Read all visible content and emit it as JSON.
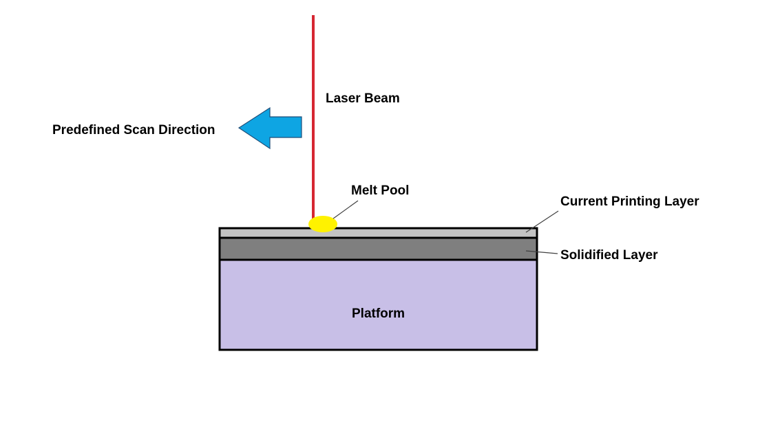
{
  "labels": {
    "laser_beam": "Laser Beam",
    "scan_direction": "Predefined Scan Direction",
    "melt_pool": "Melt Pool",
    "current_layer": "Current Printing Layer",
    "solidified_layer": "Solidified Layer",
    "platform": "Platform"
  },
  "colors": {
    "laser_beam": "#d62732",
    "scan_arrow": "#0ea5e3",
    "melt_pool": "#fff200",
    "current_layer": "#c3c3c3",
    "solidified_layer": "#7f7f7f",
    "platform": "#c8bfe7",
    "outline": "#000000",
    "leader_line": "#404040"
  },
  "icons": {
    "scan_arrow": "left-arrow-icon"
  }
}
